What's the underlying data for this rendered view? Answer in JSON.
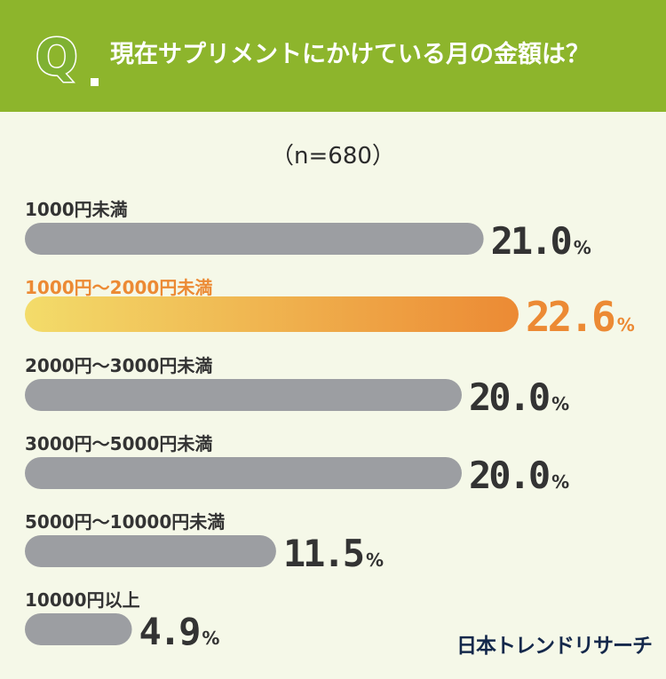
{
  "header": {
    "q_mark": "Q",
    "question": "現在サプリメントにかけている月の金額は？"
  },
  "sample_size": "（n=680）",
  "logo": "日本トレンドリサーチ",
  "colors": {
    "header_bg": "#8db52c",
    "bar_default": "#9c9ea2",
    "highlight_start": "#f3dc6a",
    "highlight_end": "#ec8a34",
    "highlight_text": "#ec8a34",
    "text": "#333333"
  },
  "chart_data": {
    "type": "bar",
    "orientation": "horizontal",
    "categories": [
      "1000円未満",
      "1000円〜2000円未満",
      "2000円〜3000円未満",
      "3000円〜5000円未満",
      "5000円〜10000円未満",
      "10000円以上"
    ],
    "values": [
      21.0,
      22.6,
      20.0,
      20.0,
      11.5,
      4.9
    ],
    "value_labels": [
      "21.0",
      "22.6",
      "20.0",
      "20.0",
      "11.5",
      "4.9"
    ],
    "unit": "%",
    "highlight_index": 1
  }
}
